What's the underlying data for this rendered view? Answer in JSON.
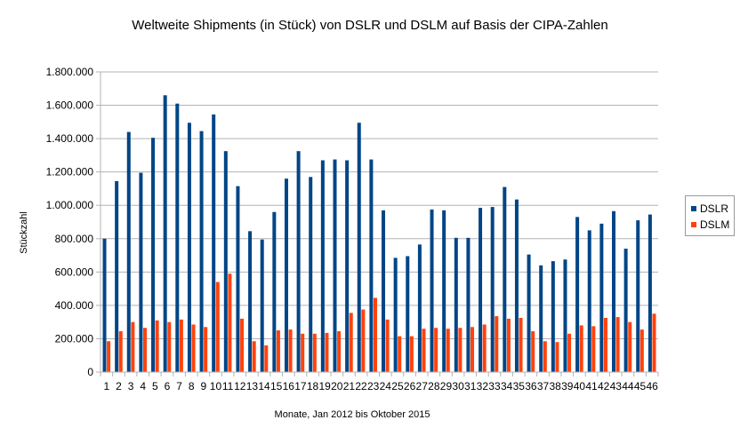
{
  "chart_data": {
    "type": "bar",
    "title": "Weltweite Shipments (in Stück) von DSLR und DSLM auf Basis der CIPA-Zahlen",
    "xlabel": "Monate, Jan 2012 bis Oktober 2015",
    "ylabel": "Stückzahl",
    "ylim": [
      0,
      1800000
    ],
    "y_ticks": [
      {
        "value": 0,
        "label": "0"
      },
      {
        "value": 200000,
        "label": "200.000"
      },
      {
        "value": 400000,
        "label": "400.000"
      },
      {
        "value": 600000,
        "label": "600.000"
      },
      {
        "value": 800000,
        "label": "800.000"
      },
      {
        "value": 1000000,
        "label": "1.000.000"
      },
      {
        "value": 1200000,
        "label": "1.200.000"
      },
      {
        "value": 1400000,
        "label": "1.400.000"
      },
      {
        "value": 1600000,
        "label": "1.600.000"
      },
      {
        "value": 1800000,
        "label": "1.800.000"
      }
    ],
    "grid": true,
    "legend_position": "right",
    "categories": [
      "1",
      "2",
      "3",
      "4",
      "5",
      "6",
      "7",
      "8",
      "9",
      "10",
      "11",
      "12",
      "13",
      "14",
      "15",
      "16",
      "17",
      "18",
      "19",
      "20",
      "21",
      "22",
      "23",
      "24",
      "25",
      "26",
      "27",
      "28",
      "29",
      "30",
      "31",
      "32",
      "33",
      "34",
      "35",
      "36",
      "37",
      "38",
      "39",
      "40",
      "41",
      "42",
      "43",
      "44",
      "45",
      "46"
    ],
    "series": [
      {
        "name": "DSLR",
        "color": "#004586",
        "values": [
          800000,
          1145000,
          1440000,
          1195000,
          1405000,
          1660000,
          1610000,
          1495000,
          1445000,
          1545000,
          1325000,
          1115000,
          845000,
          795000,
          960000,
          1160000,
          1325000,
          1170000,
          1270000,
          1275000,
          1270000,
          1495000,
          1275000,
          970000,
          685000,
          695000,
          765000,
          975000,
          970000,
          805000,
          805000,
          985000,
          990000,
          1110000,
          1035000,
          705000,
          640000,
          665000,
          675000,
          930000,
          850000,
          890000,
          965000,
          740000,
          910000,
          945000
        ]
      },
      {
        "name": "DSLM",
        "color": "#ff420e",
        "values": [
          185000,
          245000,
          300000,
          265000,
          310000,
          300000,
          315000,
          285000,
          270000,
          540000,
          590000,
          320000,
          185000,
          160000,
          250000,
          255000,
          230000,
          230000,
          235000,
          245000,
          355000,
          375000,
          445000,
          315000,
          215000,
          215000,
          260000,
          265000,
          260000,
          265000,
          270000,
          285000,
          335000,
          320000,
          325000,
          245000,
          185000,
          180000,
          230000,
          280000,
          275000,
          325000,
          330000,
          300000,
          255000,
          350000
        ]
      }
    ]
  }
}
